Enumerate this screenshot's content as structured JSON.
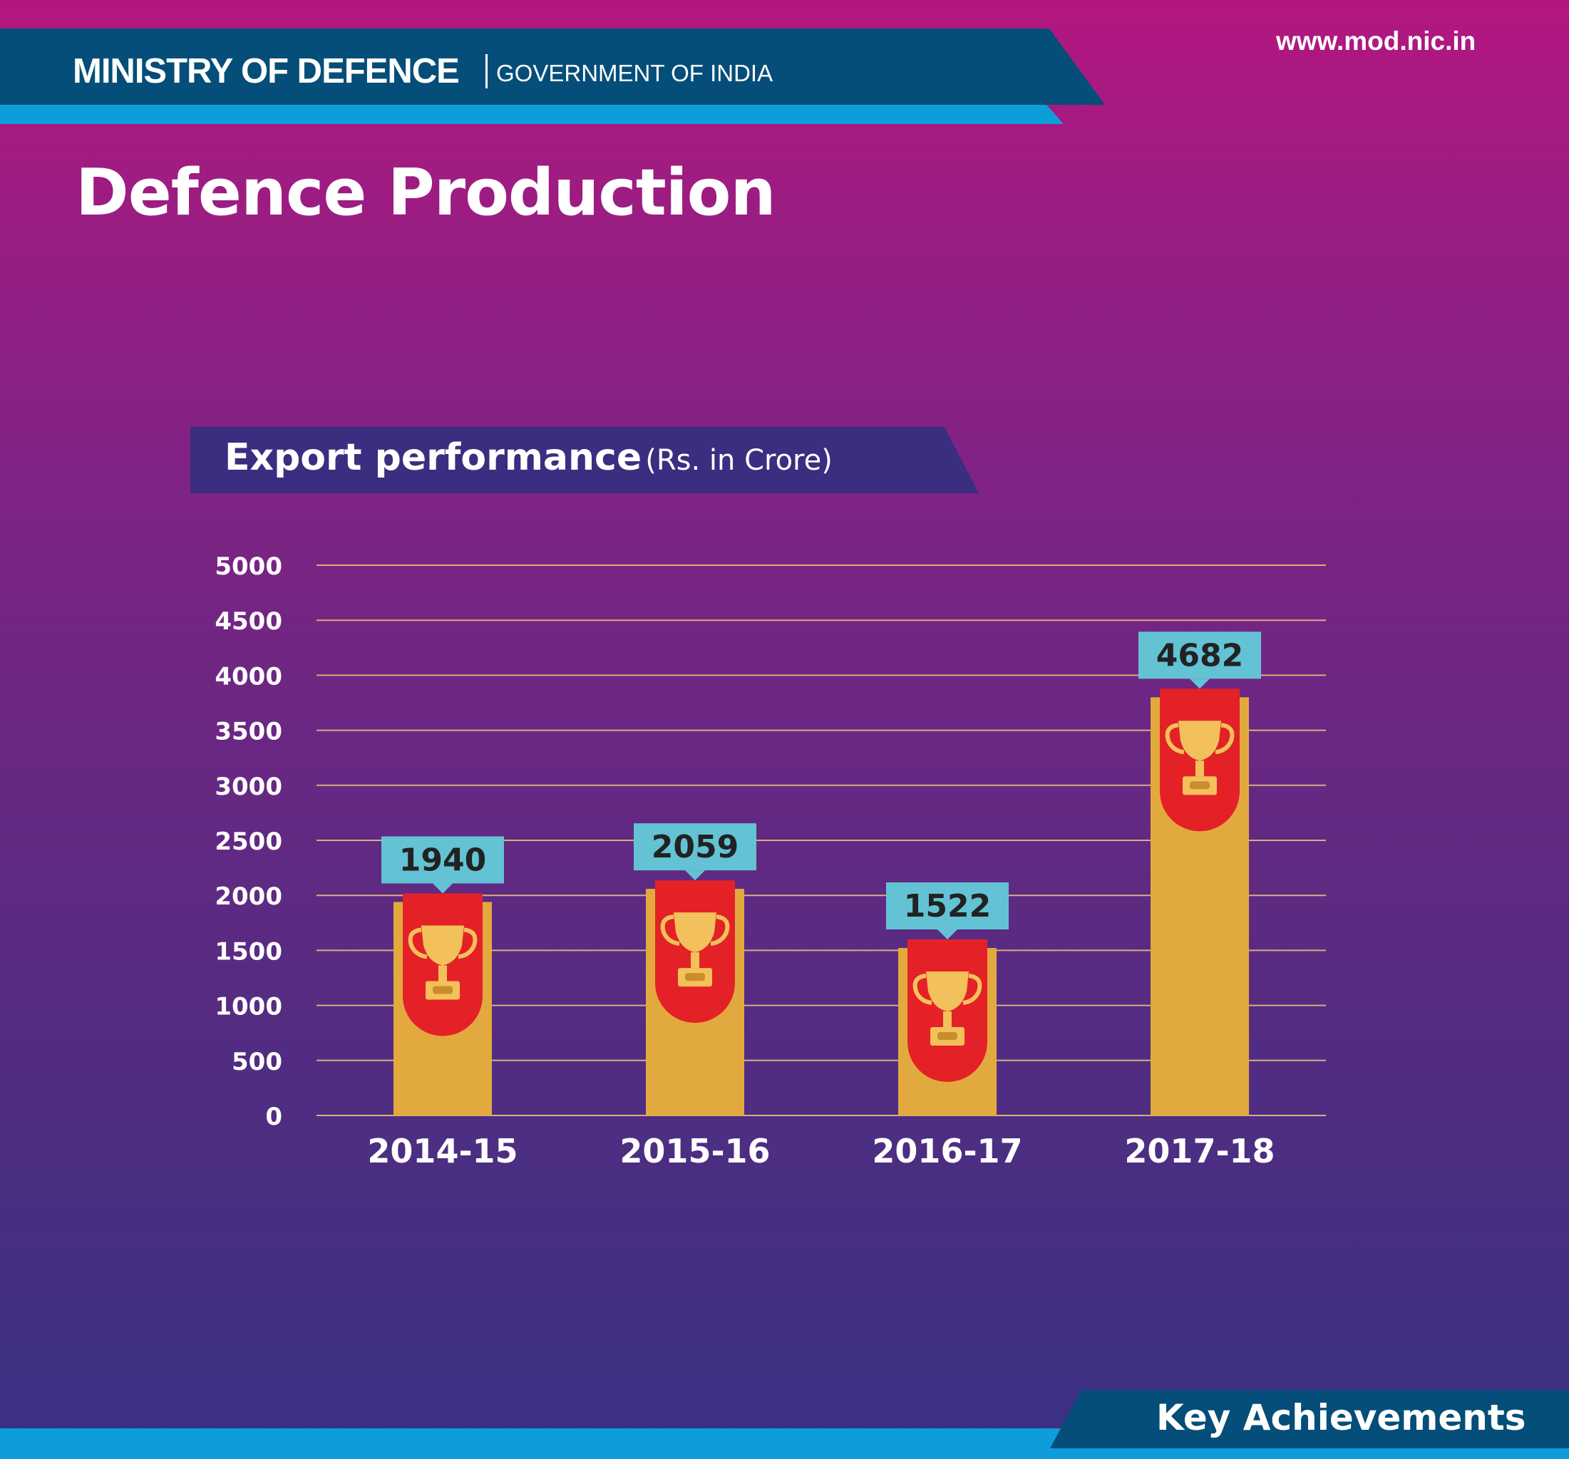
{
  "header": {
    "ministry": "MINISTRY OF DEFENCE",
    "government": "GOVERNMENT OF INDIA",
    "website": "www.mod.nic.in"
  },
  "page_title": "Defence Production",
  "chart_title": {
    "main": "Export performance",
    "unit": "(Rs. in Crore)"
  },
  "footer": {
    "label": "Key Achievements"
  },
  "colors": {
    "bar": "#e2aa3e",
    "ribbon": "#e42127",
    "value_label_bg": "#63c2d4",
    "grid": "#d6b07a",
    "trophy": "#f2c15b"
  },
  "chart_data": {
    "type": "bar",
    "title": "Export performance",
    "subtitle": "(Rs. in Crore)",
    "categories": [
      "2014-15",
      "2015-16",
      "2016-17",
      "2017-18"
    ],
    "values": [
      1940,
      2059,
      1522,
      4682
    ],
    "yticks": [
      0,
      500,
      1000,
      1500,
      2000,
      2500,
      3000,
      3500,
      4000,
      4500,
      5000
    ],
    "ylim": [
      0,
      5000
    ],
    "grid": true,
    "legend": "none",
    "icon": "trophy-icon"
  }
}
